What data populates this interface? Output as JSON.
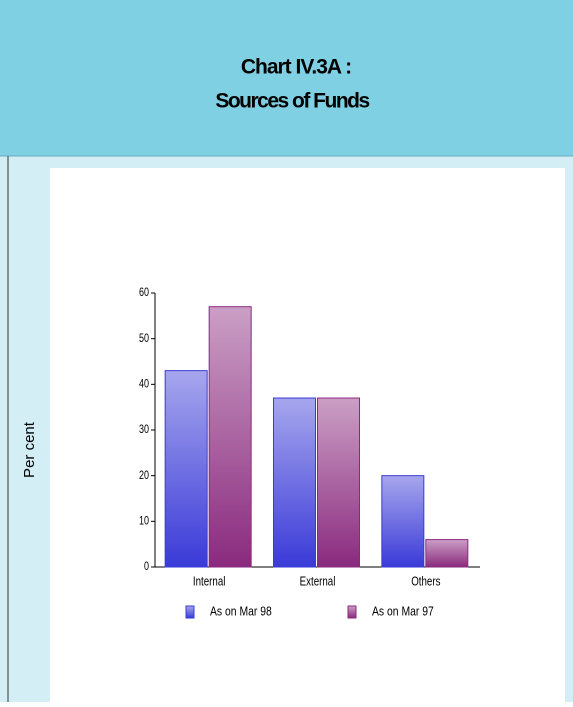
{
  "chart_data": {
    "type": "bar",
    "title": "Chart IV.3A :",
    "subtitle": "Sources of Funds",
    "y_label": "Per cent",
    "categories": [
      "Internal",
      "External",
      "Others"
    ],
    "series": [
      {
        "name": "As on Mar 98",
        "color": "#3a3ad8",
        "values": [
          43,
          37,
          20
        ]
      },
      {
        "name": "As on Mar 97",
        "color": "#8a2a7e",
        "values": [
          57,
          37,
          6
        ]
      }
    ],
    "ylim": [
      0,
      60
    ],
    "yticks": [
      0,
      10,
      20,
      30,
      40,
      50,
      60
    ]
  }
}
